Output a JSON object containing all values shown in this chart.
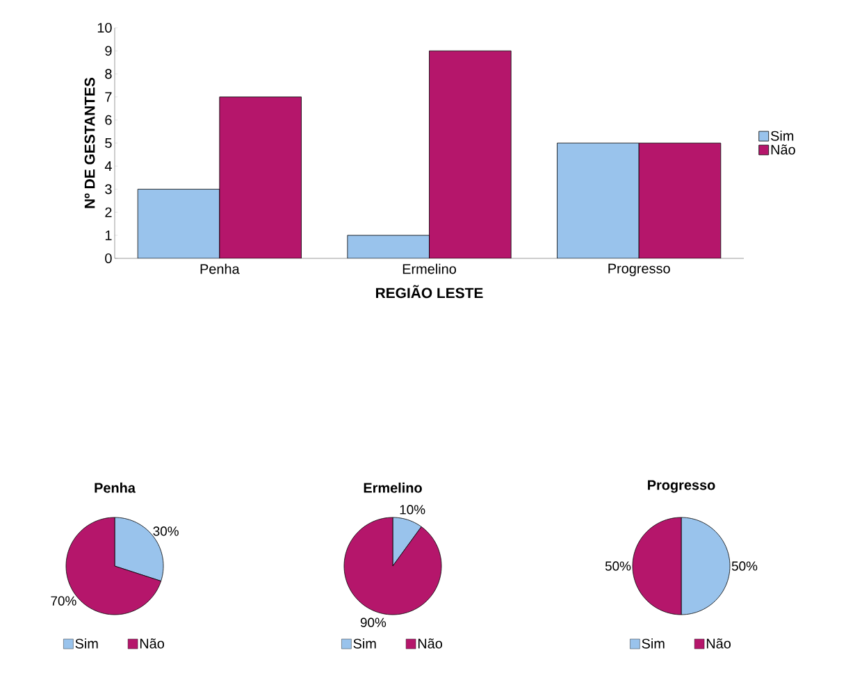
{
  "chart_data": [
    {
      "type": "bar",
      "categories": [
        "Penha",
        "Ermelino",
        "Progresso"
      ],
      "xlabel": "REGIÃO LESTE",
      "ylabel": "Nº DE GESTANTES",
      "series": [
        {
          "name": "Sim",
          "color": "#99c3ec",
          "values": [
            3,
            1,
            5
          ]
        },
        {
          "name": "Não",
          "color": "#b5166b",
          "values": [
            7,
            9,
            5
          ]
        }
      ],
      "ylim": [
        0,
        10
      ],
      "yticks": [
        0,
        1,
        2,
        3,
        4,
        5,
        6,
        7,
        8,
        9,
        10
      ],
      "legend": "right"
    },
    {
      "type": "pie",
      "title": "Penha",
      "categories": [
        "Sim",
        "Não"
      ],
      "values": [
        30,
        70
      ],
      "colors": [
        "#99c3ec",
        "#b5166b"
      ],
      "value_labels": [
        "30%",
        "70%"
      ],
      "legend": "bottom"
    },
    {
      "type": "pie",
      "title": "Ermelino",
      "categories": [
        "Sim",
        "Não"
      ],
      "values": [
        10,
        90
      ],
      "colors": [
        "#99c3ec",
        "#b5166b"
      ],
      "value_labels": [
        "10%",
        "90%"
      ],
      "legend": "bottom"
    },
    {
      "type": "pie",
      "title": "Progresso",
      "categories": [
        "Sim",
        "Não"
      ],
      "values": [
        50,
        50
      ],
      "colors": [
        "#99c3ec",
        "#b5166b"
      ],
      "value_labels": [
        "50%",
        "50%"
      ],
      "legend": "bottom"
    }
  ]
}
